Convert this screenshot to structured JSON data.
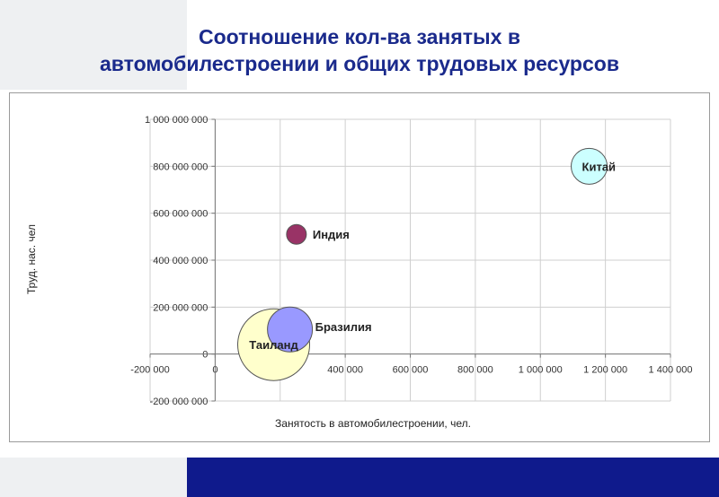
{
  "title": {
    "line1": "Соотношение кол-ва занятых в",
    "line2": "автомобилестроении и общих трудовых ресурсов"
  },
  "chart_data": {
    "type": "bubble",
    "xlabel": "Занятость в автомобилестроении, чел.",
    "ylabel": "Труд. нас. чел",
    "xlim": [
      -200000,
      1400000
    ],
    "ylim": [
      -200000000,
      1000000000
    ],
    "x_ticks": [
      -200000,
      0,
      200000,
      400000,
      600000,
      800000,
      1000000,
      1200000,
      1400000
    ],
    "x_tick_labels": [
      "-200 000",
      "0",
      "200 000",
      "400 000",
      "600 000",
      "800 000",
      "1 000 000",
      "1 200 000",
      "1 400 000"
    ],
    "y_ticks": [
      -200000000,
      0,
      200000000,
      400000000,
      600000000,
      800000000,
      1000000000
    ],
    "y_tick_labels": [
      "-200 000 000",
      "0",
      "200 000 000",
      "400 000 000",
      "600 000 000",
      "800 000 000",
      "1 000 000 000"
    ],
    "grid": true,
    "legend": "none",
    "points": [
      {
        "label": "Китай",
        "x": 1150000,
        "y": 800000000,
        "size": 20,
        "color": "#ccffff"
      },
      {
        "label": "Индия",
        "x": 250000,
        "y": 510000000,
        "size": 11,
        "color": "#993366"
      },
      {
        "label": "Бразилия",
        "x": 230000,
        "y": 105000000,
        "size": 25,
        "color": "#9999ff"
      },
      {
        "label": "Таиланд",
        "x": 180000,
        "y": 40000000,
        "size": 40,
        "color": "#ffffcc"
      }
    ]
  }
}
